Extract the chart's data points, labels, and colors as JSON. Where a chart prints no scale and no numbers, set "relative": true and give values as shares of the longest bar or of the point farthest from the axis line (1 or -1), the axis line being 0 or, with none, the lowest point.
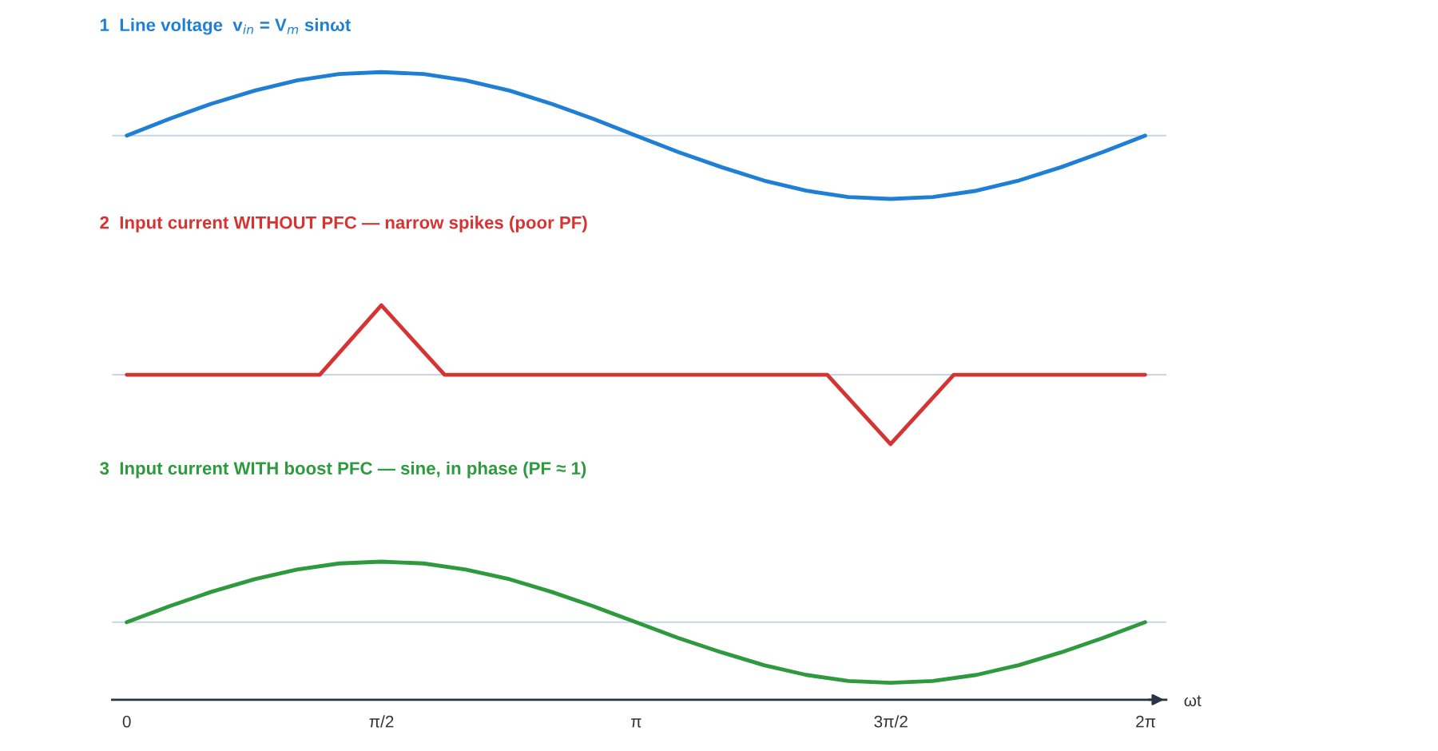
{
  "chart_data": [
    {
      "type": "line",
      "title": "1  Line voltage  v$_{in}$ = V$_{m}$ sinωt",
      "relative": true,
      "tick_labels": false,
      "xlim": [
        -0.09,
        6.41
      ],
      "legend": false,
      "grid": false,
      "marker": "none",
      "line_style": "solid",
      "ref_lines": [
        {
          "axis": "y",
          "value": 0,
          "color": "#c8d4e6"
        }
      ],
      "series": [
        {
          "color": "#1f7fd4",
          "x": [
            0,
            0.26,
            0.52,
            0.79,
            1.05,
            1.31,
            1.57,
            1.83,
            2.09,
            2.36,
            2.62,
            2.88,
            3.14,
            3.4,
            3.67,
            3.93,
            4.19,
            4.45,
            4.71,
            4.97,
            5.24,
            5.5,
            5.76,
            6.02,
            6.28
          ],
          "values": [
            0,
            0.26,
            0.5,
            0.71,
            0.87,
            0.97,
            1,
            0.97,
            0.87,
            0.71,
            0.5,
            0.26,
            0,
            -0.26,
            -0.5,
            -0.71,
            -0.87,
            -0.97,
            -1,
            -0.97,
            -0.87,
            -0.71,
            -0.5,
            -0.26,
            0
          ]
        }
      ]
    },
    {
      "type": "line",
      "title": "2  Input current WITHOUT PFC — narrow spikes (poor PF)",
      "relative": true,
      "tick_labels": false,
      "xlim": [
        -0.09,
        6.41
      ],
      "legend": false,
      "grid": false,
      "marker": "none",
      "line_style": "solid",
      "ref_lines": [
        {
          "axis": "y",
          "value": 0,
          "color": "#c8d4e6"
        }
      ],
      "series": [
        {
          "color": "#d63333",
          "x": [
            0,
            1.19,
            1.57,
            1.96,
            4.32,
            4.71,
            5.1,
            6.28
          ],
          "values": [
            0,
            0,
            1,
            0,
            0,
            -1,
            0,
            0
          ]
        }
      ]
    },
    {
      "type": "line",
      "title": "3  Input current WITH boost PFC — sine, in phase (PF ≈ 1)",
      "xlabel": "ωt",
      "relative": true,
      "tick_labels": "x",
      "xlim": [
        -0.09,
        6.41
      ],
      "legend": false,
      "grid": false,
      "marker": "none",
      "line_style": "solid",
      "xticks": [
        0,
        {
          "value": 1.5708,
          "label": "π/2"
        },
        {
          "value": 3.1416,
          "label": "π"
        },
        {
          "value": 4.7124,
          "label": "3π/2"
        },
        {
          "value": 6.2832,
          "label": "2π"
        }
      ],
      "ref_lines": [
        {
          "axis": "y",
          "value": 0,
          "color": "#c8d4e6"
        }
      ],
      "series": [
        {
          "color": "#2e9a3e",
          "x": [
            0,
            0.26,
            0.52,
            0.79,
            1.05,
            1.31,
            1.57,
            1.83,
            2.09,
            2.36,
            2.62,
            2.88,
            3.14,
            3.4,
            3.67,
            3.93,
            4.19,
            4.45,
            4.71,
            4.97,
            5.24,
            5.5,
            5.76,
            6.02,
            6.28
          ],
          "values": [
            0,
            0.26,
            0.5,
            0.71,
            0.87,
            0.97,
            1,
            0.97,
            0.87,
            0.71,
            0.5,
            0.26,
            0,
            -0.26,
            -0.5,
            -0.71,
            -0.87,
            -0.97,
            -1,
            -0.97,
            -0.87,
            -0.71,
            -0.5,
            -0.26,
            0
          ]
        }
      ]
    }
  ]
}
